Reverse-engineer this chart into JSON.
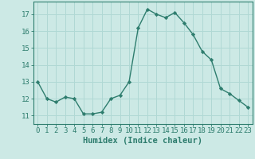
{
  "x": [
    0,
    1,
    2,
    3,
    4,
    5,
    6,
    7,
    8,
    9,
    10,
    11,
    12,
    13,
    14,
    15,
    16,
    17,
    18,
    19,
    20,
    21,
    22,
    23
  ],
  "y": [
    13.0,
    12.0,
    11.8,
    12.1,
    12.0,
    11.1,
    11.1,
    11.2,
    12.0,
    12.2,
    13.0,
    16.2,
    17.3,
    17.0,
    16.8,
    17.1,
    16.5,
    15.8,
    14.8,
    14.3,
    12.6,
    12.3,
    11.9,
    11.5
  ],
  "line_color": "#2e7d6e",
  "marker": "D",
  "marker_size": 2.2,
  "bg_color": "#cce9e5",
  "grid_color": "#b0d8d4",
  "xlabel": "Humidex (Indice chaleur)",
  "xlim": [
    -0.5,
    23.5
  ],
  "ylim": [
    10.5,
    17.75
  ],
  "yticks": [
    11,
    12,
    13,
    14,
    15,
    16,
    17
  ],
  "xticks": [
    0,
    1,
    2,
    3,
    4,
    5,
    6,
    7,
    8,
    9,
    10,
    11,
    12,
    13,
    14,
    15,
    16,
    17,
    18,
    19,
    20,
    21,
    22,
    23
  ],
  "tick_label_fontsize": 6.5,
  "xlabel_fontsize": 7.5,
  "axis_color": "#2e7d6e",
  "linewidth": 1.0
}
